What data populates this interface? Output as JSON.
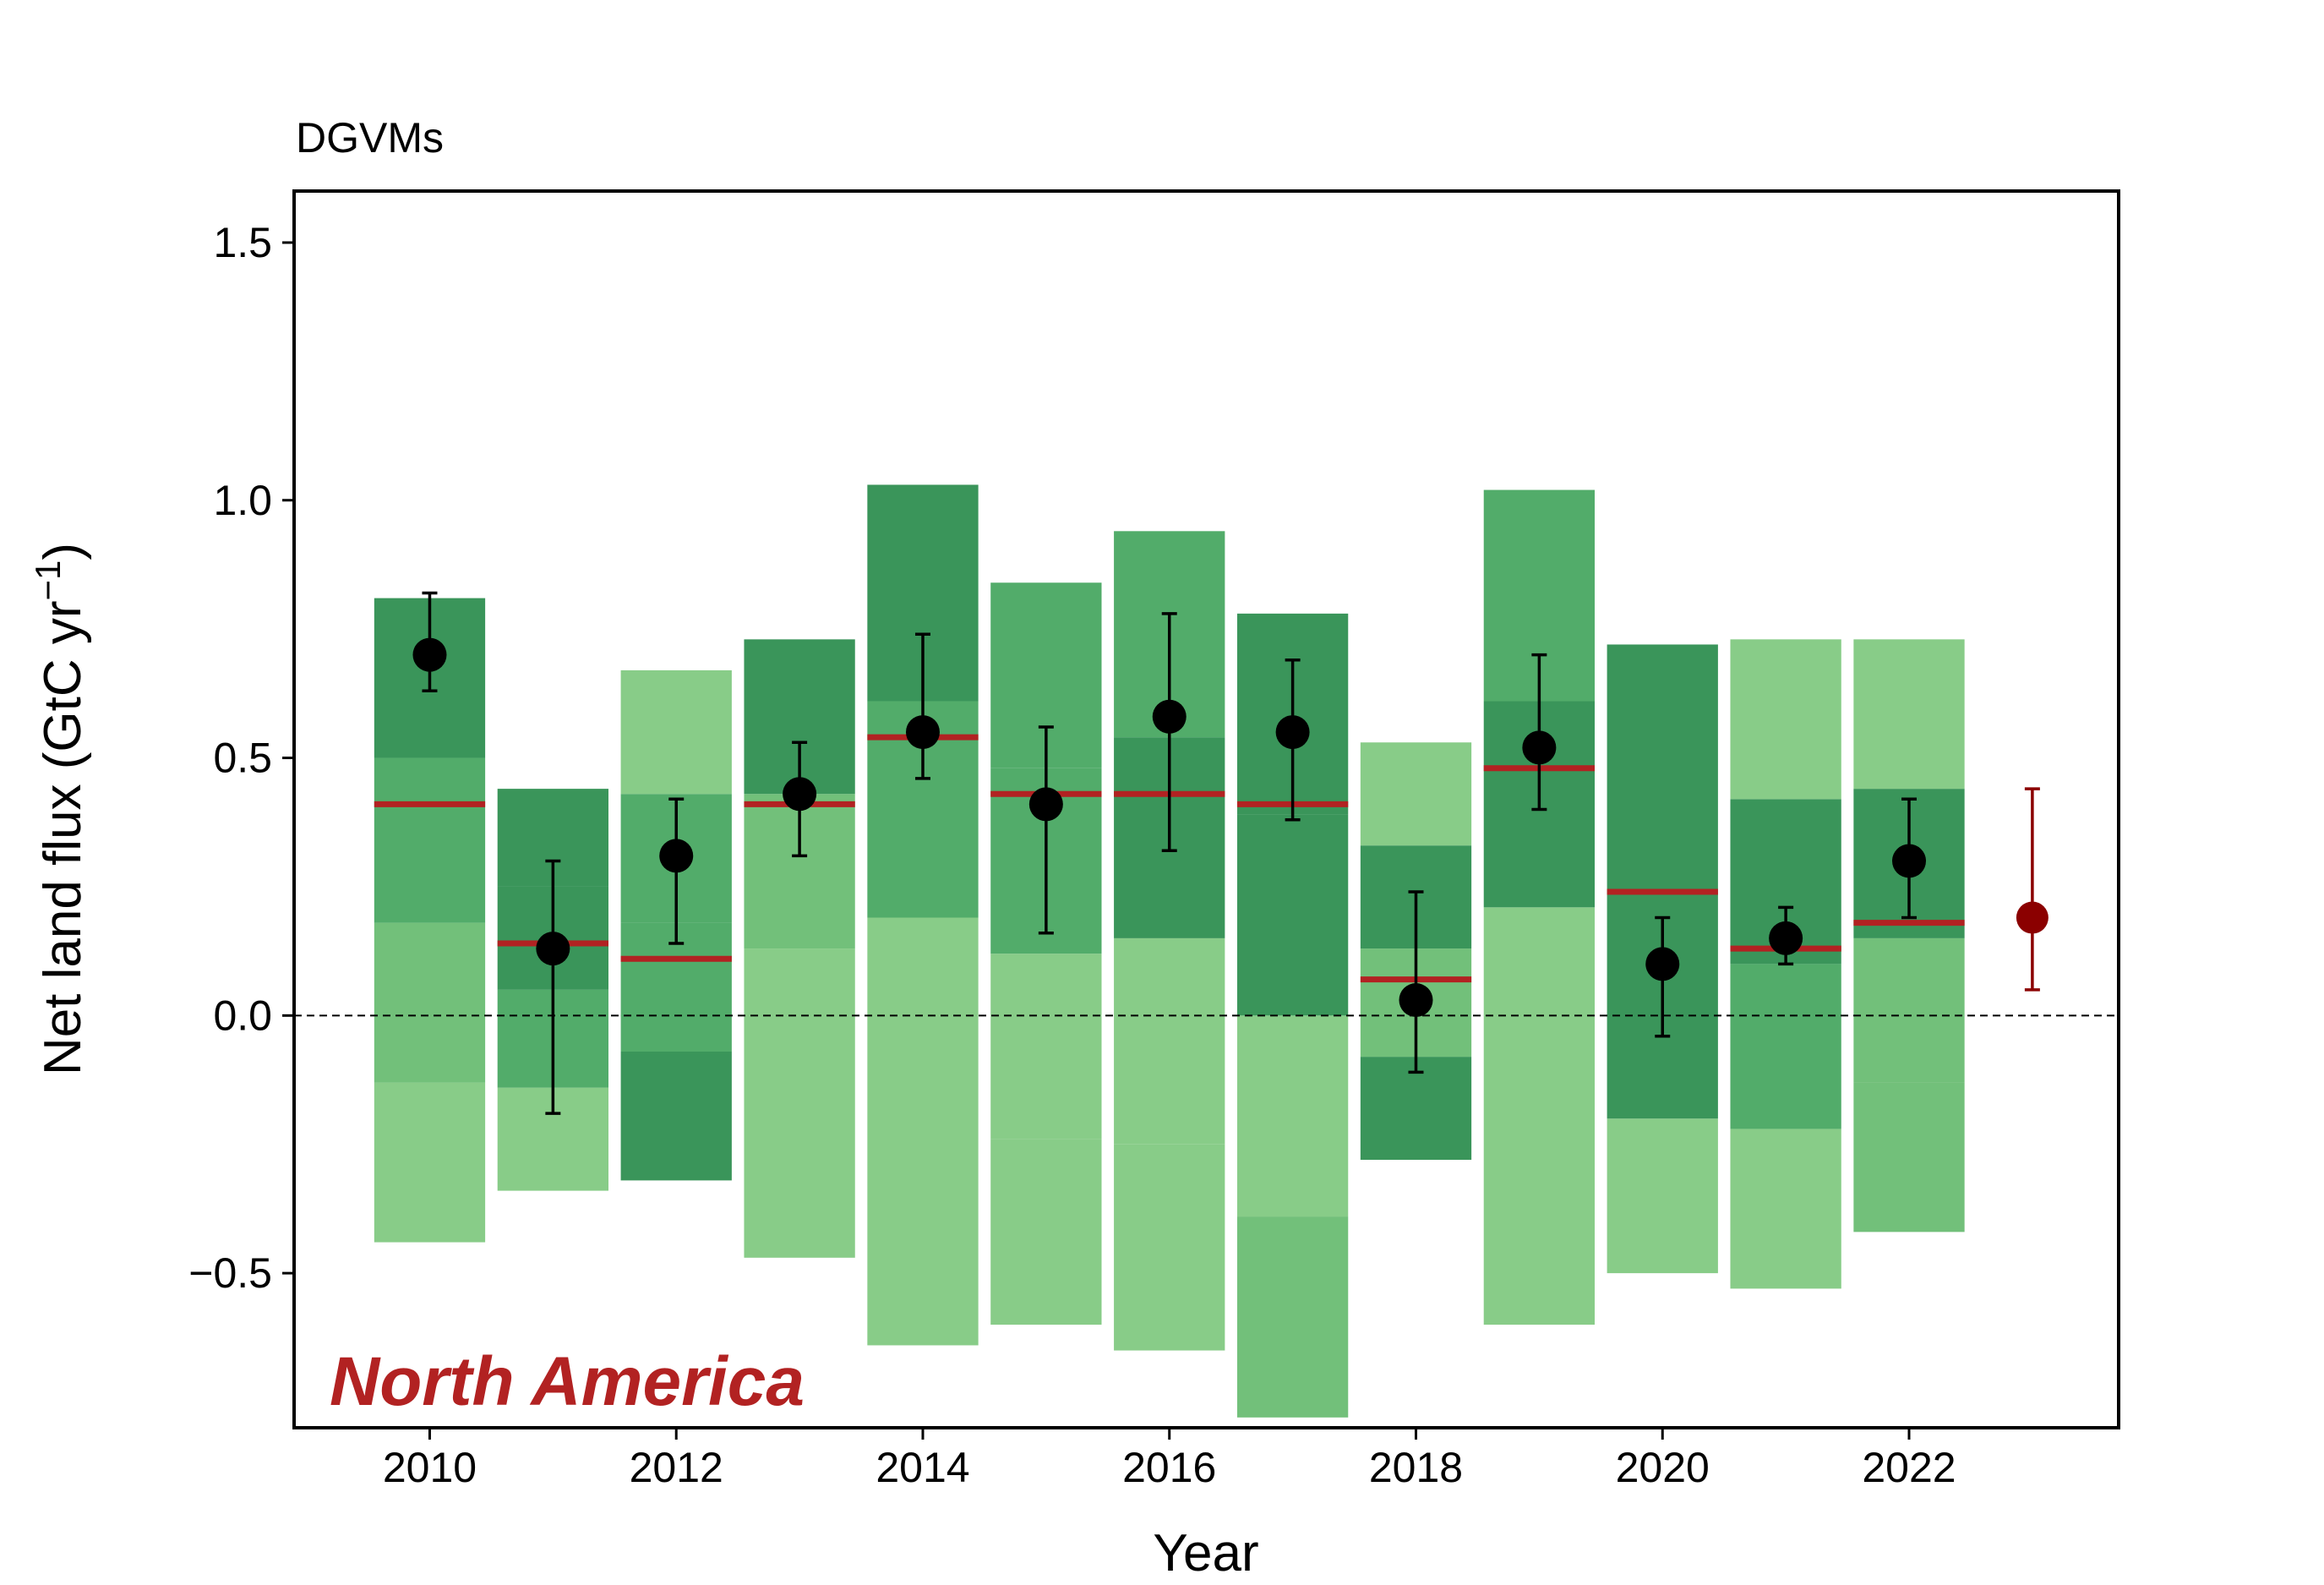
{
  "chart_data": {
    "type": "bar",
    "title": "DGVMs",
    "annotation": "North America",
    "xlabel": "Year",
    "ylabel": "Net land flux (GtC yr",
    "ylabel_sup": "−1",
    "ylabel_close": ")",
    "xlim": [
      2008.9,
      2023.7
    ],
    "ylim": [
      -0.8,
      1.6
    ],
    "xticks": [
      2010,
      2012,
      2014,
      2016,
      2018,
      2020,
      2022
    ],
    "xtick_labels": [
      "2010",
      "2012",
      "2014",
      "2016",
      "2018",
      "2020",
      "2022"
    ],
    "yticks": [
      -0.5,
      0.0,
      0.5,
      1.0,
      1.5
    ],
    "ytick_labels": [
      "−0.5",
      "0.0",
      "0.5",
      "1.0",
      "1.5"
    ],
    "zero_line": true,
    "colors": {
      "light": "#88cc88",
      "mid_light": "#72c07a",
      "mid": "#52ac6a",
      "dark": "#3a955a",
      "median_line": "#b22222",
      "points": "#000000",
      "latest_point": "#8b0000",
      "annotation": "#b22222"
    },
    "years": [
      2010,
      2011,
      2012,
      2013,
      2014,
      2015,
      2016,
      2017,
      2018,
      2019,
      2020,
      2021,
      2022
    ],
    "segments": [
      [
        [
          -0.44,
          -0.13,
          "light"
        ],
        [
          -0.13,
          0.18,
          "mid_light"
        ],
        [
          0.18,
          0.5,
          "mid"
        ],
        [
          0.5,
          0.81,
          "dark"
        ]
      ],
      [
        [
          -0.34,
          -0.14,
          "light"
        ],
        [
          -0.14,
          0.05,
          "mid"
        ],
        [
          0.05,
          0.25,
          "dark"
        ],
        [
          0.25,
          0.44,
          "dark"
        ]
      ],
      [
        [
          -0.32,
          -0.07,
          "dark"
        ],
        [
          -0.07,
          0.18,
          "mid"
        ],
        [
          0.18,
          0.43,
          "mid"
        ],
        [
          0.43,
          0.67,
          "light"
        ]
      ],
      [
        [
          -0.47,
          0.13,
          "light"
        ],
        [
          0.13,
          0.43,
          "mid_light"
        ],
        [
          0.43,
          0.73,
          "dark"
        ]
      ],
      [
        [
          -0.64,
          0.19,
          "light"
        ],
        [
          0.19,
          0.61,
          "mid"
        ],
        [
          0.61,
          1.03,
          "dark"
        ]
      ],
      [
        [
          -0.6,
          -0.24,
          "light"
        ],
        [
          -0.24,
          0.12,
          "light"
        ],
        [
          0.12,
          0.48,
          "mid"
        ],
        [
          0.48,
          0.84,
          "mid"
        ]
      ],
      [
        [
          -0.65,
          -0.25,
          "light"
        ],
        [
          -0.25,
          0.15,
          "light"
        ],
        [
          0.15,
          0.54,
          "dark"
        ],
        [
          0.54,
          0.94,
          "mid"
        ]
      ],
      [
        [
          -0.78,
          -0.39,
          "mid_light"
        ],
        [
          -0.39,
          0.0,
          "light"
        ],
        [
          0.0,
          0.39,
          "dark"
        ],
        [
          0.39,
          0.78,
          "dark"
        ]
      ],
      [
        [
          -0.28,
          -0.08,
          "dark"
        ],
        [
          -0.08,
          0.13,
          "mid_light"
        ],
        [
          0.13,
          0.33,
          "dark"
        ],
        [
          0.33,
          0.53,
          "light"
        ]
      ],
      [
        [
          -0.6,
          0.21,
          "light"
        ],
        [
          0.21,
          0.61,
          "dark"
        ],
        [
          0.61,
          1.02,
          "mid"
        ]
      ],
      [
        [
          -0.5,
          -0.2,
          "light"
        ],
        [
          -0.2,
          0.72,
          "dark"
        ]
      ],
      [
        [
          -0.53,
          -0.22,
          "light"
        ],
        [
          -0.22,
          0.1,
          "mid"
        ],
        [
          0.1,
          0.42,
          "dark"
        ],
        [
          0.42,
          0.73,
          "light"
        ]
      ],
      [
        [
          -0.42,
          -0.13,
          "mid_light"
        ],
        [
          -0.13,
          0.15,
          "mid_light"
        ],
        [
          0.15,
          0.44,
          "dark"
        ],
        [
          0.44,
          0.73,
          "light"
        ]
      ]
    ],
    "medians": [
      0.41,
      0.14,
      0.11,
      0.41,
      0.54,
      0.43,
      0.43,
      0.41,
      0.07,
      0.48,
      0.24,
      0.13,
      0.18
    ],
    "points": [
      {
        "x": 2010,
        "y": 0.7,
        "lo": 0.63,
        "hi": 0.82
      },
      {
        "x": 2011,
        "y": 0.13,
        "lo": -0.19,
        "hi": 0.3
      },
      {
        "x": 2012,
        "y": 0.31,
        "lo": 0.14,
        "hi": 0.42
      },
      {
        "x": 2013,
        "y": 0.43,
        "lo": 0.31,
        "hi": 0.53
      },
      {
        "x": 2014,
        "y": 0.55,
        "lo": 0.46,
        "hi": 0.74
      },
      {
        "x": 2015,
        "y": 0.41,
        "lo": 0.16,
        "hi": 0.56
      },
      {
        "x": 2016,
        "y": 0.58,
        "lo": 0.32,
        "hi": 0.78
      },
      {
        "x": 2017,
        "y": 0.55,
        "lo": 0.38,
        "hi": 0.69
      },
      {
        "x": 2018,
        "y": 0.03,
        "lo": -0.11,
        "hi": 0.24
      },
      {
        "x": 2019,
        "y": 0.52,
        "lo": 0.4,
        "hi": 0.7
      },
      {
        "x": 2020,
        "y": 0.1,
        "lo": -0.04,
        "hi": 0.19
      },
      {
        "x": 2021,
        "y": 0.15,
        "lo": 0.1,
        "hi": 0.21
      },
      {
        "x": 2022,
        "y": 0.3,
        "lo": 0.19,
        "hi": 0.42
      }
    ],
    "latest_point": {
      "x": 2023,
      "y": 0.19,
      "lo": 0.05,
      "hi": 0.44
    }
  }
}
